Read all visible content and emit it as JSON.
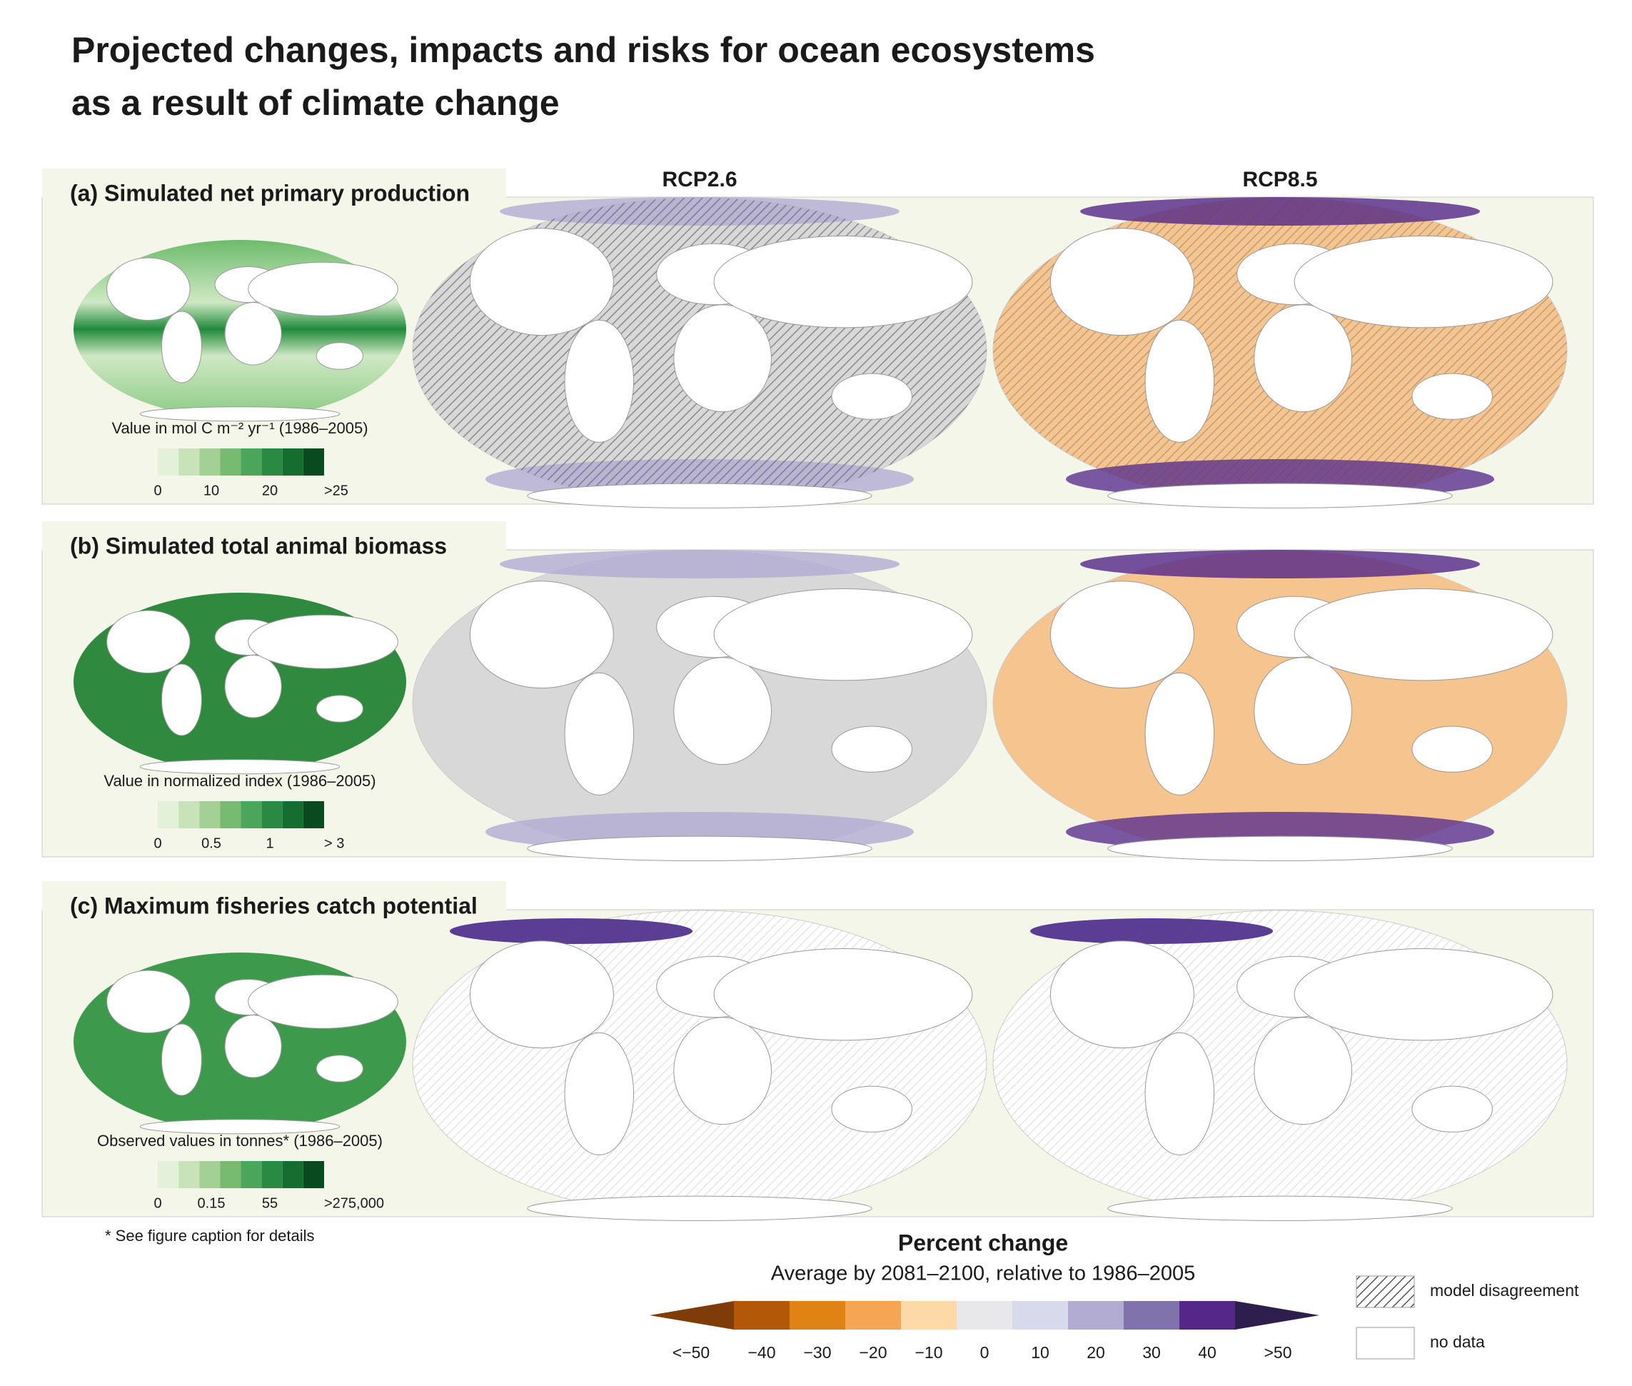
{
  "title": [
    "Projected changes, impacts and risks for ocean ecosystems",
    "as a result of climate change"
  ],
  "scenarios": [
    {
      "name": "RCP2.6",
      "color": "#1f3864"
    },
    {
      "name": "RCP8.5",
      "color": "#9b1c1f"
    }
  ],
  "panels": [
    {
      "label": "(a) Simulated net primary production",
      "legend_title": "Value in  mol C m⁻² yr⁻¹ (1986–2005)",
      "legend_ticks": [
        "0",
        "10",
        "20",
        ">25"
      ]
    },
    {
      "label": "(b) Simulated total animal biomass",
      "legend_title": "Value in normalized index (1986–2005)",
      "legend_ticks": [
        "0",
        "0.5",
        "1",
        "> 3"
      ]
    },
    {
      "label": "(c) Maximum fisheries catch potential",
      "legend_title": "Observed values in tonnes* (1986–2005)",
      "legend_ticks": [
        "0",
        "0.15",
        "55",
        ">275,000"
      ]
    }
  ],
  "green_scale": [
    "#e3f0da",
    "#c8e3b9",
    "#a3d195",
    "#76bb70",
    "#4ba55a",
    "#2a8a43",
    "#166d30",
    "#0a4a1f"
  ],
  "footnote": "* See figure caption for details",
  "percent_legend": {
    "title": "Percent change",
    "subtitle": "Average by 2081–2100, relative to 1986–2005",
    "ticks": [
      "<−50",
      "−40",
      "−30",
      "−20",
      "−10",
      "0",
      "10",
      "20",
      "30",
      "40",
      ">50"
    ],
    "colors": [
      "#7f3b08",
      "#b35806",
      "#e08214",
      "#f5a554",
      "#fdd9a8",
      "#e8e8ea",
      "#d8daec",
      "#b2abd2",
      "#8073ac",
      "#542788",
      "#2d1e4e"
    ]
  },
  "key": {
    "hatch": "model disagreement",
    "nodata": "no data"
  }
}
